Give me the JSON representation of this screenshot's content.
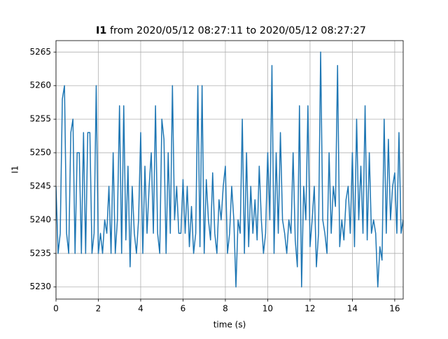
{
  "chart_data": {
    "type": "line",
    "title_signal": "I1",
    "title": "from 2020/05/12 08:27:11 to 2020/05/12 08:27:27",
    "xlabel": "time (s)",
    "ylabel": "I1",
    "color": "#1f77b4",
    "grid": true,
    "xlim": [
      0,
      16.4
    ],
    "ylim": [
      5228.2,
      5266.7
    ],
    "xticks": [
      0,
      2,
      4,
      6,
      8,
      10,
      12,
      14,
      16
    ],
    "yticks": [
      5230,
      5235,
      5240,
      5245,
      5250,
      5255,
      5260,
      5265
    ],
    "x": [
      0,
      0.1,
      0.2,
      0.3,
      0.4,
      0.5,
      0.6,
      0.7,
      0.8,
      0.9,
      1,
      1.1,
      1.2,
      1.3,
      1.4,
      1.5,
      1.6,
      1.7,
      1.8,
      1.9,
      2,
      2.1,
      2.2,
      2.3,
      2.4,
      2.5,
      2.6,
      2.7,
      2.8,
      2.9,
      3,
      3.1,
      3.2,
      3.3,
      3.4,
      3.5,
      3.6,
      3.7,
      3.8,
      3.9,
      4,
      4.1,
      4.2,
      4.3,
      4.4,
      4.5,
      4.6,
      4.7,
      4.8,
      4.9,
      5,
      5.1,
      5.2,
      5.3,
      5.4,
      5.5,
      5.6,
      5.7,
      5.8,
      5.9,
      6,
      6.1,
      6.2,
      6.3,
      6.4,
      6.5,
      6.6,
      6.7,
      6.8,
      6.9,
      7,
      7.1,
      7.2,
      7.3,
      7.4,
      7.5,
      7.6,
      7.7,
      7.8,
      7.9,
      8,
      8.1,
      8.2,
      8.3,
      8.4,
      8.5,
      8.6,
      8.7,
      8.8,
      8.9,
      9,
      9.1,
      9.2,
      9.3,
      9.4,
      9.5,
      9.6,
      9.7,
      9.8,
      9.9,
      10,
      10.1,
      10.2,
      10.3,
      10.4,
      10.5,
      10.6,
      10.7,
      10.8,
      10.9,
      11,
      11.1,
      11.2,
      11.3,
      11.4,
      11.5,
      11.6,
      11.7,
      11.8,
      11.9,
      12,
      12.1,
      12.2,
      12.3,
      12.4,
      12.5,
      12.6,
      12.7,
      12.8,
      12.9,
      13,
      13.1,
      13.2,
      13.3,
      13.4,
      13.5,
      13.6,
      13.7,
      13.8,
      13.9,
      14,
      14.1,
      14.2,
      14.3,
      14.4,
      14.5,
      14.6,
      14.7,
      14.8,
      14.9,
      15,
      15.1,
      15.2,
      15.3,
      15.4,
      15.5,
      15.6,
      15.7,
      15.8,
      15.9,
      16,
      16.1,
      16.2,
      16.3,
      16.4
    ],
    "values": [
      5245,
      5235,
      5238,
      5258,
      5260,
      5238,
      5235,
      5253,
      5255,
      5235,
      5250,
      5250,
      5235,
      5253,
      5235,
      5253,
      5253,
      5235,
      5238,
      5260,
      5235,
      5238,
      5235,
      5240,
      5238,
      5245,
      5235,
      5250,
      5235,
      5240,
      5257,
      5235,
      5257,
      5237,
      5248,
      5233,
      5245,
      5238,
      5235,
      5240,
      5253,
      5235,
      5248,
      5238,
      5245,
      5250,
      5238,
      5257,
      5238,
      5235,
      5255,
      5252,
      5235,
      5250,
      5238,
      5260,
      5240,
      5245,
      5238,
      5238,
      5246,
      5238,
      5245,
      5236,
      5242,
      5235,
      5238,
      5260,
      5236,
      5260,
      5235,
      5246,
      5240,
      5237,
      5247,
      5238,
      5235,
      5243,
      5240,
      5245,
      5248,
      5235,
      5238,
      5245,
      5240,
      5230,
      5240,
      5238,
      5255,
      5235,
      5250,
      5236,
      5245,
      5238,
      5243,
      5237,
      5248,
      5240,
      5235,
      5238,
      5250,
      5240,
      5263,
      5235,
      5250,
      5238,
      5253,
      5240,
      5238,
      5235,
      5240,
      5238,
      5250,
      5237,
      5233,
      5257,
      5230,
      5245,
      5240,
      5257,
      5236,
      5240,
      5245,
      5233,
      5238,
      5265,
      5240,
      5238,
      5235,
      5250,
      5238,
      5245,
      5242,
      5263,
      5236,
      5240,
      5237,
      5243,
      5245,
      5238,
      5250,
      5236,
      5255,
      5240,
      5248,
      5238,
      5257,
      5237,
      5250,
      5238,
      5240,
      5238,
      5230,
      5236,
      5234,
      5255,
      5238,
      5252,
      5240,
      5245,
      5247,
      5238,
      5253,
      5238,
      5240
    ]
  }
}
